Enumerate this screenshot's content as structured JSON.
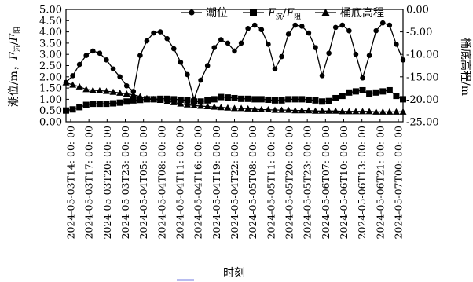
{
  "chart_data": {
    "type": "line",
    "xlabel": "时刻",
    "ylabel_left": {
      "main": "潮位/m，",
      "f1": "F",
      "s1": "沉",
      "sep": "/",
      "f2": "F",
      "s2": "阻"
    },
    "ylabel_right": "桶底高程/m",
    "y_left_range": [
      0,
      5
    ],
    "y_left_ticks": [
      "0.00",
      "0.50",
      "1.00",
      "1.50",
      "2.00",
      "2.50",
      "3.00",
      "3.50",
      "4.00",
      "4.50",
      "5.00"
    ],
    "y_right_range": [
      -25,
      0
    ],
    "y_right_ticks": [
      "0.00",
      "-5.00",
      "-10.00",
      "-15.00",
      "-20.00",
      "-25.00"
    ],
    "x_tick_labels": [
      "2024-05-03T14: 00: 00",
      "2024-05-03T17: 00: 00",
      "2024-05-03T20: 00: 00",
      "2024-05-03T23: 00: 00",
      "2024-05-04T05: 00: 00",
      "2024-05-04T08: 00: 00",
      "2024-05-04T11: 00: 00",
      "2024-05-04T16: 00: 00",
      "2024-05-04T19: 00: 00",
      "2024-05-04T22: 00: 00",
      "2024-05-05T08: 00: 00",
      "2024-05-05T11: 00: 00",
      "2024-05-05T20: 00: 00",
      "2024-05-05T23: 00: 00",
      "2024-05-06T07: 00: 00",
      "2024-05-06T10: 00: 00",
      "2024-05-06T13: 00: 00",
      "2024-05-06T21: 00: 00",
      "2024-05-07T00: 00: 00"
    ],
    "legend": [
      {
        "label": "潮位",
        "marker": "circle"
      },
      {
        "label": "F沉/F阻",
        "marker": "square",
        "f1": "F",
        "s1": "沉",
        "sep": "/",
        "f2": "F",
        "s2": "阻"
      },
      {
        "label": "桶底高程",
        "marker": "triangle"
      }
    ],
    "series": [
      {
        "name": "潮位",
        "axis": "left",
        "marker": "circle",
        "values": [
          1.75,
          2.05,
          2.55,
          2.95,
          3.15,
          3.05,
          2.75,
          2.35,
          2.0,
          1.6,
          1.35,
          2.95,
          3.6,
          3.95,
          4.0,
          3.7,
          3.25,
          2.65,
          2.1,
          1.0,
          1.85,
          2.5,
          3.3,
          3.65,
          3.5,
          3.15,
          3.5,
          4.15,
          4.3,
          4.1,
          3.45,
          2.35,
          2.9,
          3.9,
          4.3,
          4.25,
          3.95,
          3.3,
          2.05,
          3.05,
          4.2,
          4.3,
          4.05,
          3.0,
          1.95,
          2.95,
          4.05,
          4.4,
          4.3,
          3.45,
          2.75
        ]
      },
      {
        "name": "F沉/F阻",
        "axis": "left",
        "marker": "square",
        "values": [
          0.5,
          0.55,
          0.65,
          0.75,
          0.8,
          0.8,
          0.8,
          0.82,
          0.85,
          0.9,
          0.95,
          0.97,
          1.0,
          1.0,
          1.02,
          1.02,
          1.0,
          0.98,
          0.95,
          0.9,
          0.9,
          0.95,
          1.0,
          1.1,
          1.08,
          1.05,
          1.02,
          1.02,
          1.0,
          1.0,
          0.98,
          0.95,
          0.95,
          1.0,
          1.0,
          1.0,
          0.98,
          0.95,
          0.9,
          0.92,
          1.05,
          1.15,
          1.3,
          1.35,
          1.4,
          1.25,
          1.3,
          1.35,
          1.4,
          1.15,
          1.0
        ]
      },
      {
        "name": "桶底高程",
        "axis": "right",
        "marker": "triangle",
        "values": [
          -16.3,
          -16.8,
          -17.2,
          -17.8,
          -18.0,
          -18.1,
          -18.2,
          -18.4,
          -18.6,
          -18.8,
          -19.0,
          -19.4,
          -19.8,
          -20.0,
          -20.2,
          -20.5,
          -20.7,
          -21.0,
          -21.2,
          -21.4,
          -21.5,
          -21.6,
          -21.7,
          -21.8,
          -21.9,
          -22.0,
          -22.0,
          -22.1,
          -22.2,
          -22.3,
          -22.3,
          -22.4,
          -22.4,
          -22.4,
          -22.5,
          -22.5,
          -22.5,
          -22.6,
          -22.6,
          -22.6,
          -22.6,
          -22.7,
          -22.7,
          -22.7,
          -22.7,
          -22.7,
          -22.8,
          -22.8,
          -22.8,
          -22.8,
          -22.8
        ]
      }
    ]
  },
  "colors": {
    "series": "#000000",
    "background": "#ffffff",
    "highlight": "#b8bdf0"
  }
}
